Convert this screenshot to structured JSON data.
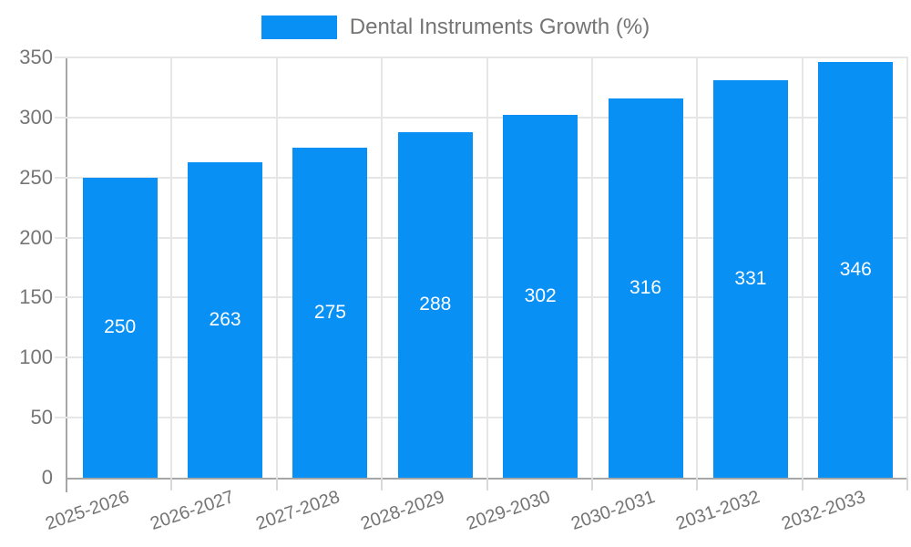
{
  "chart_data": {
    "type": "bar",
    "title": "Dental Instruments Growth (%)",
    "legend_entries": [
      "Dental Instruments Growth (%)"
    ],
    "legend_position": "top",
    "categories": [
      "2025-2026",
      "2026-2027",
      "2027-2028",
      "2028-2029",
      "2029-2030",
      "2030-2031",
      "2031-2032",
      "2032-2033"
    ],
    "values": [
      250,
      263,
      275,
      288,
      302,
      316,
      331,
      346
    ],
    "bar_labels": [
      "250",
      "263",
      "275",
      "288",
      "302",
      "316",
      "331",
      "346"
    ],
    "xlabel": "",
    "ylabel": "",
    "ylim": [
      0,
      350
    ],
    "yticks": [
      0,
      50,
      100,
      150,
      200,
      250,
      300,
      350
    ],
    "grid": true,
    "colors": {
      "bar": "#0990f5",
      "bar_label": "#ffffff",
      "axis_text": "#757575",
      "axis_line": "#a6a6a6",
      "gridline": "#e6e6e6",
      "background": "#ffffff"
    }
  }
}
